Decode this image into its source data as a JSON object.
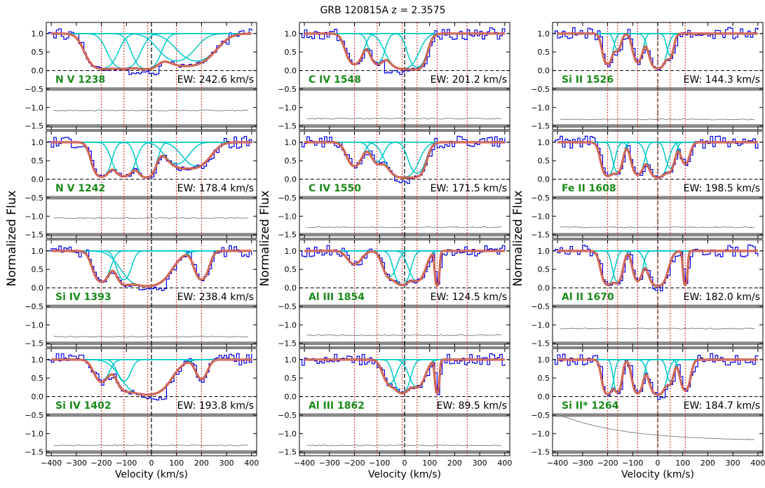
{
  "figure": {
    "title": "GRB 120815A  z = 2.3575",
    "ylabel": "Normalized Flux",
    "xlabel": "Velocity (km/s)"
  },
  "chart_data": {
    "type": "line",
    "x_range": [
      -420,
      420
    ],
    "y_range": [
      -1.6,
      1.3
    ],
    "x_ticks": [
      -400,
      -300,
      -200,
      -100,
      0,
      100,
      200,
      300,
      400
    ],
    "y_ticks": [
      1.0,
      0.5,
      0.0,
      -0.5,
      -1.0,
      -1.5
    ],
    "columns": [
      {
        "components": [
          -200,
          -110,
          -15,
          100,
          200
        ],
        "panels": [
          {
            "label": "N V 1238",
            "ew": "EW: 242.6 km/s",
            "comps": [
              {
                "v": -200,
                "d": 0.95,
                "w": 40
              },
              {
                "v": -110,
                "d": 0.95,
                "w": 40
              },
              {
                "v": -20,
                "d": 1.0,
                "w": 35
              },
              {
                "v": 100,
                "d": 0.45,
                "w": 55
              },
              {
                "v": 180,
                "d": 0.45,
                "w": 60
              }
            ],
            "sat": [
              -95,
              30
            ],
            "err_level": -1.08
          },
          {
            "label": "N V 1242",
            "ew": "EW: 178.4 km/s",
            "comps": [
              {
                "v": -200,
                "d": 0.9,
                "w": 25
              },
              {
                "v": -110,
                "d": 0.85,
                "w": 30
              },
              {
                "v": -20,
                "d": 1.0,
                "w": 25
              },
              {
                "v": 100,
                "d": 0.3,
                "w": 40
              },
              {
                "v": 180,
                "d": 0.35,
                "w": 45
              }
            ],
            "sat": null,
            "err_level": -1.05
          },
          {
            "label": "Si IV 1393",
            "ew": "EW: 238.4 km/s",
            "comps": [
              {
                "v": -200,
                "d": 0.6,
                "w": 25
              },
              {
                "v": -110,
                "d": 0.5,
                "w": 22
              },
              {
                "v": -20,
                "d": 1.0,
                "w": 60
              },
              {
                "v": 200,
                "d": 0.5,
                "w": 22
              }
            ],
            "sat": [
              -60,
              60
            ],
            "err_level": -1.32
          },
          {
            "label": "Si IV 1402",
            "ew": "EW: 193.8 km/s",
            "comps": [
              {
                "v": -200,
                "d": 0.3,
                "w": 25
              },
              {
                "v": -110,
                "d": 0.3,
                "w": 22
              },
              {
                "v": -20,
                "d": 1.0,
                "w": 60
              },
              {
                "v": 200,
                "d": 0.25,
                "w": 20
              }
            ],
            "sat": [
              -45,
              55
            ],
            "err_level": -1.32
          }
        ]
      },
      {
        "components": [
          -200,
          -110,
          -10,
          50,
          130,
          250
        ],
        "panels": [
          {
            "label": "C IV 1548",
            "ew": "EW: 201.2 km/s",
            "comps": [
              {
                "v": -200,
                "d": 0.6,
                "w": 25
              },
              {
                "v": -110,
                "d": 0.55,
                "w": 22
              },
              {
                "v": -10,
                "d": 1.0,
                "w": 40
              },
              {
                "v": 50,
                "d": 0.8,
                "w": 25
              }
            ],
            "sat": [
              -90,
              30
            ],
            "err_level": -1.3
          },
          {
            "label": "C IV 1550",
            "ew": "EW: 171.5 km/s",
            "comps": [
              {
                "v": -200,
                "d": 0.35,
                "w": 25
              },
              {
                "v": -110,
                "d": 0.25,
                "w": 22
              },
              {
                "v": -10,
                "d": 1.0,
                "w": 40
              },
              {
                "v": 50,
                "d": 0.6,
                "w": 25
              }
            ],
            "sat": [
              -50,
              20
            ],
            "err_level": -1.3
          },
          {
            "label": "Al III 1854",
            "ew": "EW: 124.5 km/s",
            "comps": [
              {
                "v": -200,
                "d": 0.15,
                "w": 25
              },
              {
                "v": -60,
                "d": 0.4,
                "w": 22
              },
              {
                "v": -10,
                "d": 0.8,
                "w": 22
              },
              {
                "v": 50,
                "d": 0.55,
                "w": 25
              },
              {
                "v": 130,
                "d": 0.95,
                "w": 6
              }
            ],
            "sat": null,
            "err_level": -1.28
          },
          {
            "label": "Al III 1862",
            "ew": "EW: 89.5 km/s",
            "comps": [
              {
                "v": -60,
                "d": 0.35,
                "w": 22
              },
              {
                "v": -10,
                "d": 0.75,
                "w": 22
              },
              {
                "v": 50,
                "d": 0.45,
                "w": 25
              },
              {
                "v": 130,
                "d": 0.8,
                "w": 6
              }
            ],
            "sat": null,
            "err_level": -1.32
          }
        ]
      },
      {
        "components": [
          -200,
          -160,
          -80,
          0,
          50,
          110
        ],
        "panels": [
          {
            "label": "Si II 1526",
            "ew": "EW: 144.3 km/s",
            "comps": [
              {
                "v": -200,
                "d": 0.6,
                "w": 15
              },
              {
                "v": -160,
                "d": 0.2,
                "w": 12
              },
              {
                "v": -80,
                "d": 0.5,
                "w": 15
              },
              {
                "v": 0,
                "d": 1.0,
                "w": 22
              },
              {
                "v": 50,
                "d": 0.3,
                "w": 12
              }
            ],
            "sat": null,
            "err_level": -1.32
          },
          {
            "label": "Fe II 1608",
            "ew": "EW: 198.5 km/s",
            "comps": [
              {
                "v": -200,
                "d": 0.8,
                "w": 18
              },
              {
                "v": -160,
                "d": 0.55,
                "w": 15
              },
              {
                "v": -80,
                "d": 0.7,
                "w": 18
              },
              {
                "v": 0,
                "d": 1.0,
                "w": 25
              },
              {
                "v": 50,
                "d": 0.4,
                "w": 15
              },
              {
                "v": 110,
                "d": 0.3,
                "w": 15
              }
            ],
            "sat": null,
            "err_level": -1.3
          },
          {
            "label": "Al II 1670",
            "ew": "EW: 182.0 km/s",
            "comps": [
              {
                "v": -200,
                "d": 0.8,
                "w": 18
              },
              {
                "v": -160,
                "d": 0.6,
                "w": 15
              },
              {
                "v": -80,
                "d": 0.55,
                "w": 15
              },
              {
                "v": 0,
                "d": 1.0,
                "w": 25
              },
              {
                "v": 110,
                "d": 0.85,
                "w": 6
              }
            ],
            "sat": [
              -30,
              20
            ],
            "err_level": -1.1
          },
          {
            "label": "Si II* 1264",
            "ew": "EW: 184.7 km/s",
            "comps": [
              {
                "v": -200,
                "d": 0.9,
                "w": 15
              },
              {
                "v": -160,
                "d": 0.7,
                "w": 12
              },
              {
                "v": -80,
                "d": 0.8,
                "w": 15
              },
              {
                "v": 0,
                "d": 1.0,
                "w": 22
              },
              {
                "v": 50,
                "d": 0.3,
                "w": 12
              },
              {
                "v": 110,
                "d": 0.6,
                "w": 15
              }
            ],
            "sat": [
              -10,
              30
            ],
            "err_level": -1.2,
            "err_rising": true
          }
        ]
      }
    ]
  },
  "colors": {
    "data": "#0000ee",
    "model": "#b8836a",
    "model_edge": "#ff0000",
    "components": "#00c8c8",
    "error": "#777777",
    "offset_band": "#888888",
    "component_marker": "#d62020",
    "label": "#1a8a1a"
  }
}
